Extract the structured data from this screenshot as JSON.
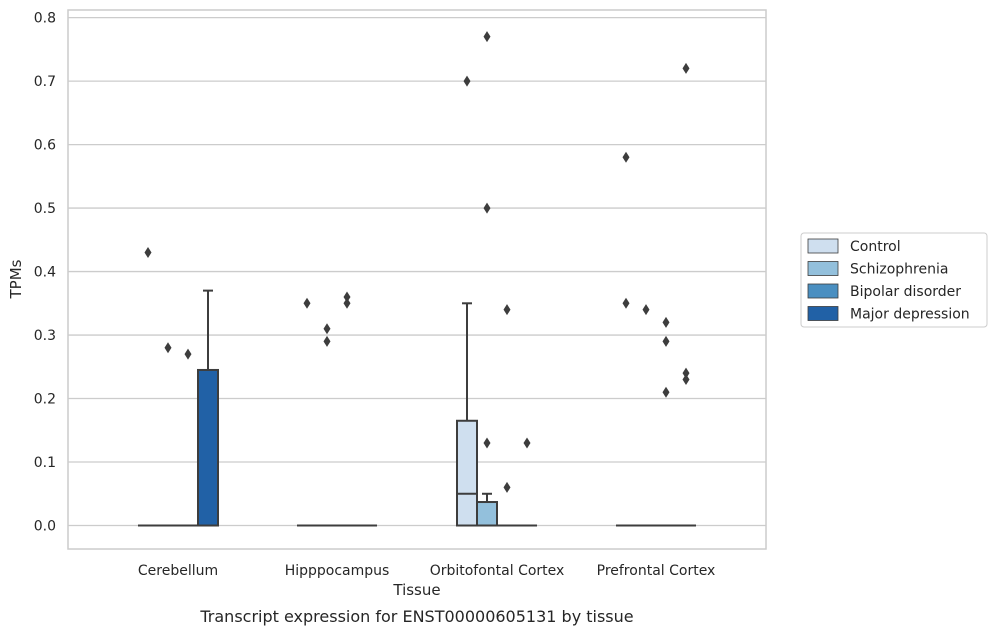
{
  "chart_data": {
    "type": "box",
    "caption": "Transcript expression for ENST00000605131 by tissue",
    "xlabel": "Tissue",
    "ylabel": "TPMs",
    "ylim": [
      -0.037,
      0.812
    ],
    "yticks": [
      0.0,
      0.1,
      0.2,
      0.3,
      0.4,
      0.5,
      0.6,
      0.7,
      0.8
    ],
    "ytick_labels": [
      "0.0",
      "0.1",
      "0.2",
      "0.3",
      "0.4",
      "0.5",
      "0.6",
      "0.7",
      "0.8"
    ],
    "grid": "horizontal",
    "legend_position": "right",
    "categories": [
      "Cerebellum",
      "Hipppocampus",
      "Orbitofontal Cortex",
      "Prefrontal Cortex"
    ],
    "series": [
      {
        "name": "Control",
        "color": "#cfdfef",
        "boxes": [
          {
            "q1": 0.0,
            "median": 0.0,
            "q3": 0.0,
            "whisker_low": 0.0,
            "whisker_high": 0.0,
            "outliers": [
              0.43
            ]
          },
          {
            "q1": 0.0,
            "median": 0.0,
            "q3": 0.0,
            "whisker_low": 0.0,
            "whisker_high": 0.0,
            "outliers": [
              0.35
            ]
          },
          {
            "q1": 0.0,
            "median": 0.05,
            "q3": 0.165,
            "whisker_low": 0.0,
            "whisker_high": 0.35,
            "outliers": [
              0.7
            ]
          },
          {
            "q1": 0.0,
            "median": 0.0,
            "q3": 0.0,
            "whisker_low": 0.0,
            "whisker_high": 0.0,
            "outliers": [
              0.58,
              0.35
            ]
          }
        ]
      },
      {
        "name": "Schizophrenia",
        "color": "#93c0dc",
        "boxes": [
          {
            "q1": 0.0,
            "median": 0.0,
            "q3": 0.0,
            "whisker_low": 0.0,
            "whisker_high": 0.0,
            "outliers": [
              0.28
            ]
          },
          {
            "q1": 0.0,
            "median": 0.0,
            "q3": 0.0,
            "whisker_low": 0.0,
            "whisker_high": 0.0,
            "outliers": [
              0.31,
              0.29
            ]
          },
          {
            "q1": 0.0,
            "median": 0.0,
            "q3": 0.037,
            "whisker_low": 0.0,
            "whisker_high": 0.05,
            "outliers": [
              0.77,
              0.5,
              0.13
            ]
          },
          {
            "q1": 0.0,
            "median": 0.0,
            "q3": 0.0,
            "whisker_low": 0.0,
            "whisker_high": 0.0,
            "outliers": [
              0.34
            ]
          }
        ]
      },
      {
        "name": "Bipolar disorder",
        "color": "#4a8fc1",
        "boxes": [
          {
            "q1": 0.0,
            "median": 0.0,
            "q3": 0.0,
            "whisker_low": 0.0,
            "whisker_high": 0.0,
            "outliers": [
              0.27
            ]
          },
          {
            "q1": 0.0,
            "median": 0.0,
            "q3": 0.0,
            "whisker_low": 0.0,
            "whisker_high": 0.0,
            "outliers": [
              0.36,
              0.35
            ]
          },
          {
            "q1": 0.0,
            "median": 0.0,
            "q3": 0.0,
            "whisker_low": 0.0,
            "whisker_high": 0.0,
            "outliers": [
              0.34,
              0.06
            ]
          },
          {
            "q1": 0.0,
            "median": 0.0,
            "q3": 0.0,
            "whisker_low": 0.0,
            "whisker_high": 0.0,
            "outliers": [
              0.32,
              0.29,
              0.21
            ]
          }
        ]
      },
      {
        "name": "Major depression",
        "color": "#2161a6",
        "boxes": [
          {
            "q1": 0.0,
            "median": 0.0,
            "q3": 0.245,
            "whisker_low": 0.0,
            "whisker_high": 0.37,
            "outliers": []
          },
          {
            "q1": 0.0,
            "median": 0.0,
            "q3": 0.0,
            "whisker_low": 0.0,
            "whisker_high": 0.0,
            "outliers": []
          },
          {
            "q1": 0.0,
            "median": 0.0,
            "q3": 0.0,
            "whisker_low": 0.0,
            "whisker_high": 0.0,
            "outliers": [
              0.13
            ]
          },
          {
            "q1": 0.0,
            "median": 0.0,
            "q3": 0.0,
            "whisker_low": 0.0,
            "whisker_high": 0.0,
            "outliers": [
              0.72,
              0.24,
              0.23
            ]
          }
        ]
      }
    ]
  }
}
